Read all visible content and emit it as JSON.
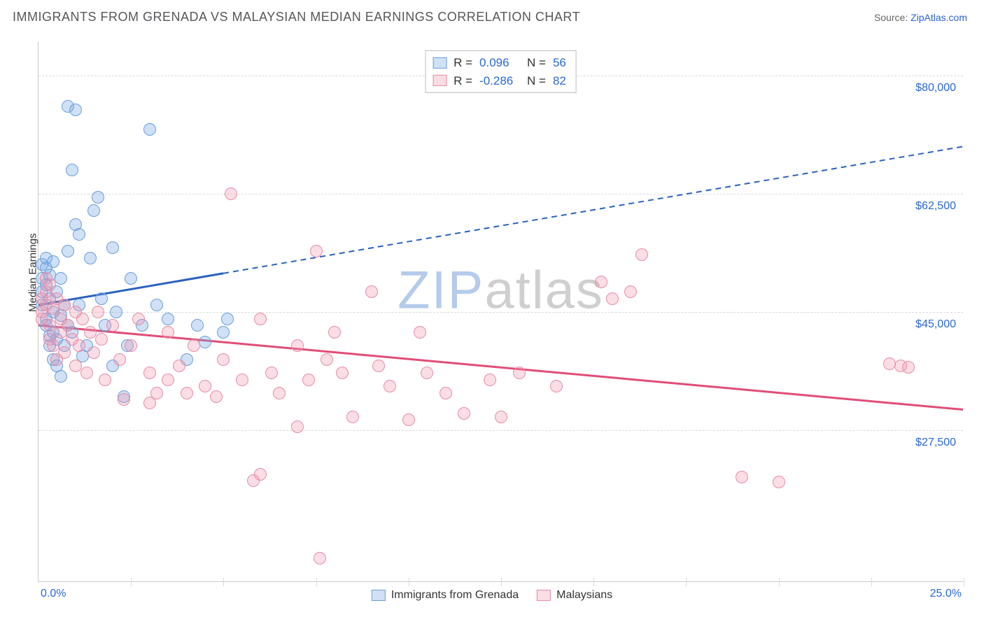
{
  "header": {
    "title": "IMMIGRANTS FROM GRENADA VS MALAYSIAN MEDIAN EARNINGS CORRELATION CHART",
    "source_label": "Source:",
    "source_name": "ZipAtlas.com"
  },
  "chart": {
    "type": "scatter",
    "ylabel": "Median Earnings",
    "xlim": [
      0.0,
      25.0
    ],
    "ylim": [
      5000,
      85000
    ],
    "x_ticks": [
      0,
      2.5,
      5,
      7.5,
      10,
      12.5,
      15,
      17.5,
      20,
      22.5,
      25
    ],
    "x_min_label": "0.0%",
    "x_max_label": "25.0%",
    "y_ticks": [
      {
        "v": 27500,
        "label": "$27,500"
      },
      {
        "v": 45000,
        "label": "$45,000"
      },
      {
        "v": 62500,
        "label": "$62,500"
      },
      {
        "v": 80000,
        "label": "$80,000"
      }
    ],
    "background_color": "#ffffff",
    "grid_color": "#d9d9d9",
    "axis_color": "#c9c9c9",
    "marker_radius": 9,
    "series": [
      {
        "key": "grenada",
        "label": "Immigrants from Grenada",
        "fill": "rgba(120,170,230,0.35)",
        "stroke": "#6a9edb",
        "line_color": "#2a62bf",
        "r": 0.096,
        "n": 56,
        "trend": {
          "x1": 0.0,
          "y1": 46000,
          "x2": 25.0,
          "y2": 69500,
          "solid_until_x": 5.0
        },
        "points": [
          [
            0.1,
            46000
          ],
          [
            0.1,
            48000
          ],
          [
            0.1,
            50000
          ],
          [
            0.1,
            52000
          ],
          [
            0.2,
            44000
          ],
          [
            0.2,
            49000
          ],
          [
            0.2,
            51500
          ],
          [
            0.2,
            53000
          ],
          [
            0.2,
            43000
          ],
          [
            0.3,
            47000
          ],
          [
            0.3,
            40000
          ],
          [
            0.3,
            41500
          ],
          [
            0.3,
            50500
          ],
          [
            0.4,
            45000
          ],
          [
            0.4,
            42000
          ],
          [
            0.4,
            38000
          ],
          [
            0.4,
            52500
          ],
          [
            0.5,
            48000
          ],
          [
            0.5,
            41000
          ],
          [
            0.5,
            37000
          ],
          [
            0.6,
            50000
          ],
          [
            0.6,
            44500
          ],
          [
            0.6,
            35500
          ],
          [
            0.7,
            46000
          ],
          [
            0.7,
            40000
          ],
          [
            0.8,
            43000
          ],
          [
            0.8,
            54000
          ],
          [
            0.8,
            75500
          ],
          [
            0.9,
            42000
          ],
          [
            0.9,
            66000
          ],
          [
            1.0,
            58000
          ],
          [
            1.0,
            75000
          ],
          [
            1.1,
            46000
          ],
          [
            1.1,
            56500
          ],
          [
            1.2,
            38500
          ],
          [
            1.3,
            40000
          ],
          [
            1.4,
            53000
          ],
          [
            1.5,
            60000
          ],
          [
            1.6,
            62000
          ],
          [
            1.7,
            47000
          ],
          [
            1.8,
            43000
          ],
          [
            2.0,
            54500
          ],
          [
            2.0,
            37000
          ],
          [
            2.1,
            45000
          ],
          [
            2.3,
            32500
          ],
          [
            2.4,
            40000
          ],
          [
            2.5,
            50000
          ],
          [
            2.8,
            43000
          ],
          [
            3.0,
            72000
          ],
          [
            3.2,
            46000
          ],
          [
            3.5,
            44000
          ],
          [
            4.0,
            38000
          ],
          [
            4.3,
            43000
          ],
          [
            4.5,
            40500
          ],
          [
            5.0,
            42000
          ],
          [
            5.1,
            44000
          ]
        ]
      },
      {
        "key": "malaysians",
        "label": "Malaysians",
        "fill": "rgba(240,150,175,0.32)",
        "stroke": "#e78ca6",
        "line_color": "#e14d78",
        "r": -0.286,
        "n": 82,
        "trend": {
          "x1": 0.0,
          "y1": 43000,
          "x2": 25.0,
          "y2": 30500,
          "solid_until_x": 25.0
        },
        "points": [
          [
            0.1,
            45000
          ],
          [
            0.1,
            47000
          ],
          [
            0.1,
            44000
          ],
          [
            0.2,
            46000
          ],
          [
            0.2,
            48000
          ],
          [
            0.2,
            50000
          ],
          [
            0.3,
            43000
          ],
          [
            0.3,
            41000
          ],
          [
            0.3,
            49000
          ],
          [
            0.4,
            45500
          ],
          [
            0.4,
            40000
          ],
          [
            0.5,
            47000
          ],
          [
            0.5,
            38000
          ],
          [
            0.6,
            44000
          ],
          [
            0.6,
            42000
          ],
          [
            0.7,
            46000
          ],
          [
            0.7,
            39000
          ],
          [
            0.8,
            43000
          ],
          [
            0.9,
            41000
          ],
          [
            1.0,
            45000
          ],
          [
            1.0,
            37000
          ],
          [
            1.1,
            40000
          ],
          [
            1.2,
            44000
          ],
          [
            1.3,
            36000
          ],
          [
            1.4,
            42000
          ],
          [
            1.5,
            39000
          ],
          [
            1.6,
            45000
          ],
          [
            1.7,
            41000
          ],
          [
            1.8,
            35000
          ],
          [
            2.0,
            43000
          ],
          [
            2.2,
            38000
          ],
          [
            2.3,
            32000
          ],
          [
            2.5,
            40000
          ],
          [
            2.7,
            44000
          ],
          [
            3.0,
            36000
          ],
          [
            3.0,
            31500
          ],
          [
            3.2,
            33000
          ],
          [
            3.5,
            42000
          ],
          [
            3.5,
            35000
          ],
          [
            3.8,
            37000
          ],
          [
            4.0,
            33000
          ],
          [
            4.2,
            40000
          ],
          [
            4.5,
            34000
          ],
          [
            4.8,
            32500
          ],
          [
            5.0,
            38000
          ],
          [
            5.2,
            62500
          ],
          [
            5.5,
            35000
          ],
          [
            5.8,
            20000
          ],
          [
            6.0,
            44000
          ],
          [
            6.0,
            21000
          ],
          [
            6.3,
            36000
          ],
          [
            6.5,
            33000
          ],
          [
            7.0,
            40000
          ],
          [
            7.0,
            28000
          ],
          [
            7.3,
            35000
          ],
          [
            7.5,
            54000
          ],
          [
            7.6,
            8500
          ],
          [
            7.8,
            38000
          ],
          [
            8.0,
            42000
          ],
          [
            8.2,
            36000
          ],
          [
            8.5,
            29500
          ],
          [
            9.0,
            48000
          ],
          [
            9.2,
            37000
          ],
          [
            9.5,
            34000
          ],
          [
            10.0,
            29000
          ],
          [
            10.3,
            42000
          ],
          [
            10.5,
            36000
          ],
          [
            11.0,
            33000
          ],
          [
            11.5,
            30000
          ],
          [
            12.2,
            35000
          ],
          [
            12.5,
            29500
          ],
          [
            13.0,
            36000
          ],
          [
            14.0,
            34000
          ],
          [
            15.2,
            49500
          ],
          [
            15.5,
            47000
          ],
          [
            16.0,
            48000
          ],
          [
            16.3,
            53500
          ],
          [
            19.0,
            20500
          ],
          [
            20.0,
            19800
          ],
          [
            23.3,
            37000
          ],
          [
            23.5,
            36800
          ],
          [
            23.0,
            37300
          ]
        ]
      }
    ]
  },
  "watermark": {
    "left": "ZIP",
    "right": "atlas"
  },
  "colors": {
    "blue_text": "#2968d8",
    "title_text": "#55575a"
  }
}
